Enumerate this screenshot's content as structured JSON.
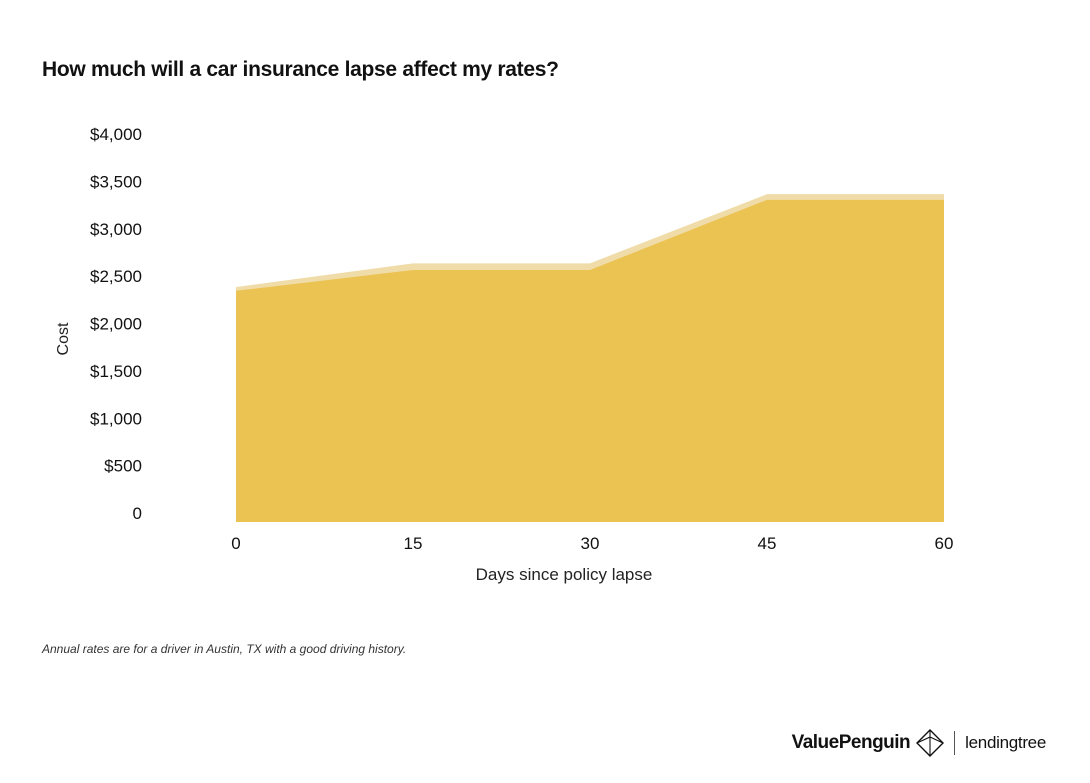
{
  "title": "How much will a car insurance lapse affect my rates?",
  "footnote": "Annual rates are for a driver in Austin, TX with a good driving history.",
  "logos": {
    "primary": "ValuePenguin",
    "secondary": "lendingtree"
  },
  "colors": {
    "area_fill": "#ebc352",
    "area_top_band": "#f0dca9",
    "background": "#ffffff",
    "text": "#111111"
  },
  "chart_data": {
    "type": "area",
    "xlabel": "Days since policy lapse",
    "ylabel": "Cost",
    "x": [
      0,
      15,
      30,
      45,
      60
    ],
    "x_ticks": [
      "0",
      "15",
      "30",
      "45",
      "60"
    ],
    "ylim": [
      0,
      4000
    ],
    "y_ticks": [
      {
        "value": 0,
        "label": "0"
      },
      {
        "value": 500,
        "label": "$500"
      },
      {
        "value": 1000,
        "label": "$1,000"
      },
      {
        "value": 1500,
        "label": "$1,500"
      },
      {
        "value": 2000,
        "label": "$2,000"
      },
      {
        "value": 2500,
        "label": "$2,500"
      },
      {
        "value": 3000,
        "label": "$3,000"
      },
      {
        "value": 3500,
        "label": "$3,500"
      },
      {
        "value": 4000,
        "label": "$4,000"
      }
    ],
    "series": [
      {
        "values": [
          2480,
          2730,
          2730,
          3460,
          3460
        ]
      },
      {
        "values": [
          2440,
          2660,
          2660,
          3400,
          3400
        ]
      }
    ],
    "grid": false,
    "legend": "none"
  }
}
